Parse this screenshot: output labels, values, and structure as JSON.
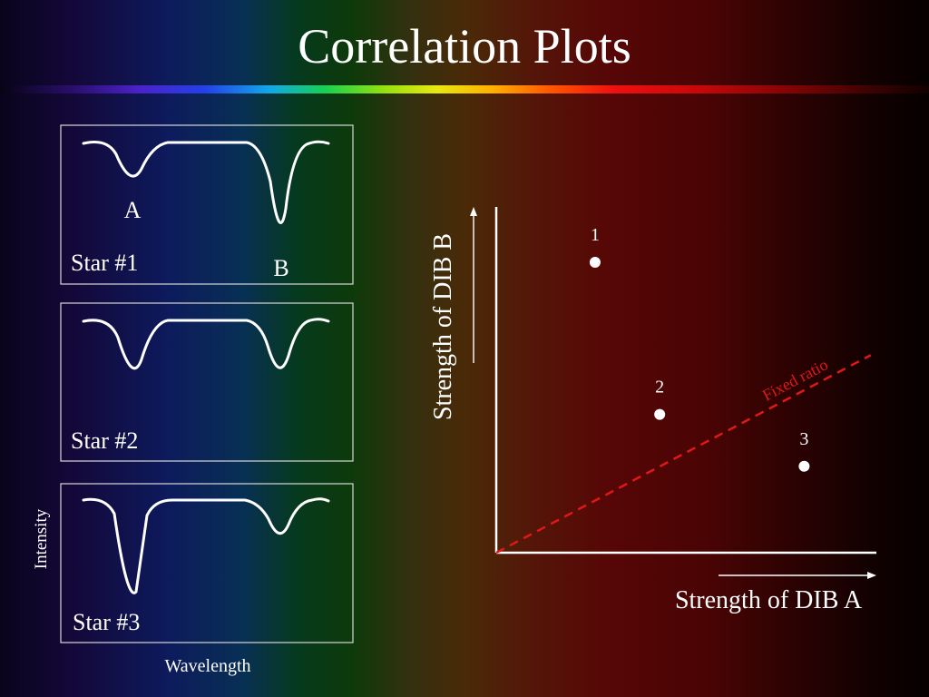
{
  "slide": {
    "title": "Correlation Plots"
  },
  "spectra": {
    "panels": [
      {
        "star_label": "Star #1",
        "line_a_label": "A",
        "line_b_label": "B"
      },
      {
        "star_label": "Star #2"
      },
      {
        "star_label": "Star #3"
      }
    ],
    "y_axis_label": "Intensity",
    "x_axis_label": "Wavelength"
  },
  "chart_data": {
    "type": "scatter",
    "xlabel": "Strength of DIB A",
    "ylabel": "Strength of DIB B",
    "points": [
      {
        "label": "1",
        "x": 0.26,
        "y": 0.84
      },
      {
        "label": "2",
        "x": 0.43,
        "y": 0.4
      },
      {
        "label": "3",
        "x": 0.81,
        "y": 0.25
      }
    ],
    "reference_line": {
      "label": "Fixed ratio",
      "color": "#e01818",
      "style": "dashed",
      "slope": 0.58
    },
    "xlim": [
      0,
      1
    ],
    "ylim": [
      0,
      1
    ]
  }
}
